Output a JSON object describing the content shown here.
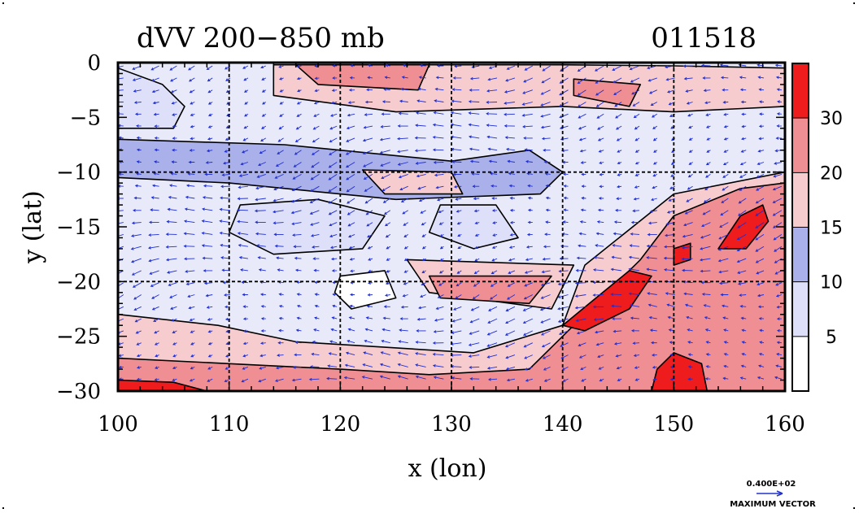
{
  "chart_data": {
    "type": "heatmap",
    "title": "dVV 200−850 mb",
    "subtitle": "011518",
    "xlabel": "x (lon)",
    "ylabel": "y (lat)",
    "xlim": [
      100,
      160
    ],
    "ylim": [
      -30,
      0
    ],
    "xticks": [
      "100",
      "110",
      "120",
      "130",
      "140",
      "150",
      "160"
    ],
    "yticks": [
      "0",
      "−5",
      "−10",
      "−15",
      "−20",
      "−25",
      "−30"
    ],
    "grid": true,
    "colorbar": {
      "levels": [
        0,
        5,
        10,
        15,
        20,
        30,
        35
      ],
      "labels": [
        "5",
        "10",
        "15",
        "20",
        "30"
      ],
      "colors": [
        "#ffffff",
        "#dde0f8",
        "#aab0ea",
        "#f6cccf",
        "#f08f93",
        "#ee1c1c"
      ]
    },
    "vector_key": {
      "value": "0.400E+02",
      "label": "MAXIMUM VECTOR"
    },
    "field_regions": [
      {
        "level": 2,
        "polygon": [
          [
            100,
            -7
          ],
          [
            115,
            -7.5
          ],
          [
            130,
            -9
          ],
          [
            137,
            -8
          ],
          [
            140,
            -10
          ],
          [
            138,
            -12
          ],
          [
            125,
            -12.5
          ],
          [
            110,
            -11
          ],
          [
            100,
            -10.5
          ]
        ]
      },
      {
        "level": 1,
        "polygon": [
          [
            100,
            -0.5
          ],
          [
            104,
            -2
          ],
          [
            106,
            -4
          ],
          [
            105,
            -6
          ],
          [
            100,
            -6
          ]
        ]
      },
      {
        "level": 1,
        "polygon": [
          [
            111,
            -13
          ],
          [
            118,
            -12.5
          ],
          [
            124,
            -14
          ],
          [
            122,
            -17
          ],
          [
            114,
            -17.5
          ],
          [
            110,
            -15.5
          ]
        ]
      },
      {
        "level": 1,
        "polygon": [
          [
            129,
            -13
          ],
          [
            134,
            -13
          ],
          [
            136,
            -16
          ],
          [
            132,
            -17
          ],
          [
            128,
            -15.5
          ]
        ]
      },
      {
        "level": 0,
        "polygon": [
          [
            120,
            -19.5
          ],
          [
            124,
            -19
          ],
          [
            125,
            -21.5
          ],
          [
            121,
            -22.5
          ],
          [
            119.5,
            -21
          ]
        ]
      },
      {
        "level": 1,
        "polygon": [
          [
            153,
            -16
          ],
          [
            158,
            -15
          ],
          [
            160,
            -17
          ],
          [
            160,
            -23
          ],
          [
            157,
            -21
          ],
          [
            154,
            -19
          ]
        ]
      },
      {
        "level": 3,
        "polygon": [
          [
            114,
            -0.2
          ],
          [
            140,
            -0.2
          ],
          [
            150,
            -0.3
          ],
          [
            160,
            -0.5
          ],
          [
            160,
            -4
          ],
          [
            150,
            -4.5
          ],
          [
            140,
            -4
          ],
          [
            125,
            -4.5
          ],
          [
            114,
            -3
          ]
        ]
      },
      {
        "level": 4,
        "polygon": [
          [
            116,
            -0.2
          ],
          [
            128,
            -0.2
          ],
          [
            127,
            -2.5
          ],
          [
            118,
            -2
          ]
        ]
      },
      {
        "level": 4,
        "polygon": [
          [
            141,
            -1.5
          ],
          [
            147,
            -2
          ],
          [
            146,
            -4
          ],
          [
            141,
            -3
          ]
        ]
      },
      {
        "level": 3,
        "polygon": [
          [
            122,
            -9.8
          ],
          [
            130,
            -10
          ],
          [
            131,
            -12
          ],
          [
            124,
            -12
          ]
        ]
      },
      {
        "level": 3,
        "polygon": [
          [
            100,
            -23
          ],
          [
            109,
            -24
          ],
          [
            116,
            -25.5
          ],
          [
            124,
            -26
          ],
          [
            132,
            -26.5
          ],
          [
            140,
            -24
          ],
          [
            142,
            -18.5
          ],
          [
            150,
            -12
          ],
          [
            160,
            -10
          ],
          [
            160,
            -30
          ],
          [
            100,
            -30
          ]
        ]
      },
      {
        "level": 3,
        "polygon": [
          [
            126,
            -18
          ],
          [
            141,
            -18.5
          ],
          [
            139,
            -22.5
          ],
          [
            128,
            -21
          ]
        ]
      },
      {
        "level": 4,
        "polygon": [
          [
            100,
            -27
          ],
          [
            110,
            -27.5
          ],
          [
            120,
            -28
          ],
          [
            128,
            -28.5
          ],
          [
            137,
            -28
          ],
          [
            142,
            -23
          ],
          [
            147,
            -18
          ],
          [
            150,
            -14
          ],
          [
            156,
            -11.5
          ],
          [
            160,
            -11
          ],
          [
            160,
            -30
          ],
          [
            100,
            -30
          ]
        ]
      },
      {
        "level": 4,
        "polygon": [
          [
            128,
            -19.5
          ],
          [
            139,
            -19.5
          ],
          [
            137,
            -22
          ],
          [
            129,
            -21.5
          ]
        ]
      },
      {
        "level": 5,
        "polygon": [
          [
            100,
            -29
          ],
          [
            105,
            -29.2
          ],
          [
            108,
            -30
          ],
          [
            100,
            -30
          ]
        ]
      },
      {
        "level": 5,
        "polygon": [
          [
            140,
            -24
          ],
          [
            143,
            -21.5
          ],
          [
            146,
            -19
          ],
          [
            148,
            -19.5
          ],
          [
            146,
            -22.5
          ],
          [
            142,
            -24.5
          ]
        ]
      },
      {
        "level": 5,
        "polygon": [
          [
            148.5,
            -28
          ],
          [
            150,
            -26.5
          ],
          [
            152.5,
            -27.5
          ],
          [
            153,
            -30
          ],
          [
            148,
            -30
          ]
        ]
      },
      {
        "level": 5,
        "polygon": [
          [
            154,
            -17
          ],
          [
            156,
            -14
          ],
          [
            158,
            -13
          ],
          [
            158.5,
            -14.5
          ],
          [
            156.5,
            -17
          ]
        ]
      },
      {
        "level": 5,
        "polygon": [
          [
            150,
            -17
          ],
          [
            151.5,
            -16.5
          ],
          [
            151.5,
            -18
          ],
          [
            150,
            -18.5
          ]
        ]
      }
    ]
  }
}
